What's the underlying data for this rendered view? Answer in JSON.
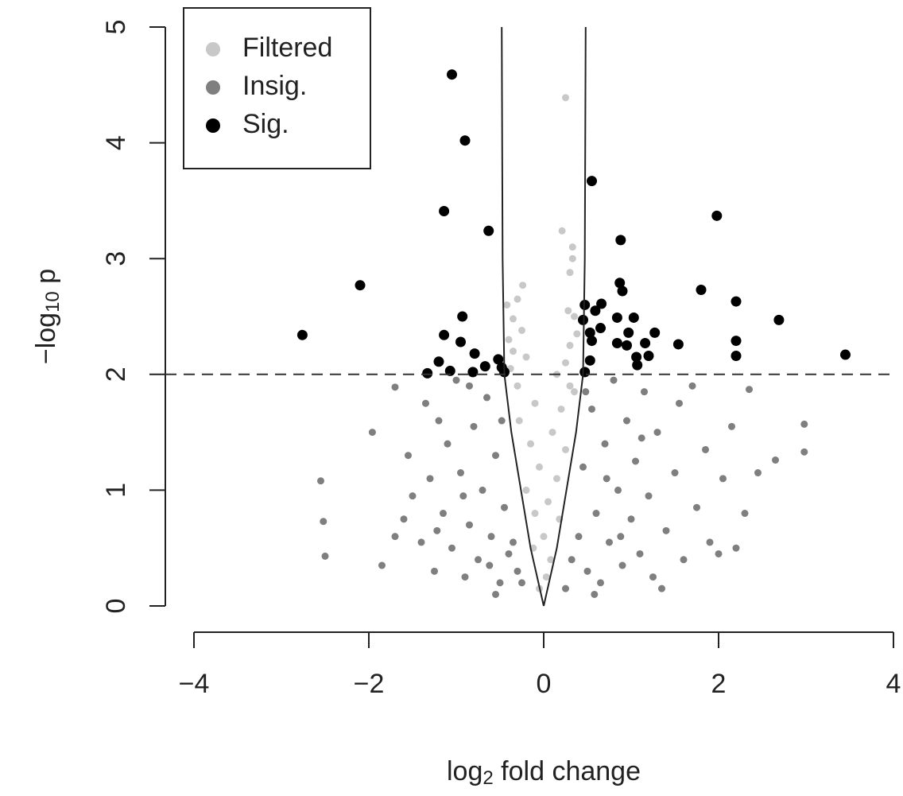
{
  "chart_data": {
    "type": "scatter",
    "xlabel_parts": [
      "log",
      "2",
      " fold change"
    ],
    "ylabel_parts": [
      "−log",
      "10",
      " p"
    ],
    "xlim": [
      -4,
      4
    ],
    "ylim": [
      0,
      5
    ],
    "xticks": [
      {
        "value": -4,
        "label": "−4"
      },
      {
        "value": -2,
        "label": "−2"
      },
      0,
      2,
      4
    ],
    "yticks": [
      0,
      1,
      2,
      3,
      4,
      5
    ],
    "hline": 2,
    "curves": [
      {
        "x": [
          0,
          -0.15,
          -0.26,
          -0.37,
          -0.45,
          -0.47,
          -0.475,
          -0.48
        ],
        "y": [
          0,
          0.5,
          1,
          1.5,
          2,
          3,
          4,
          5
        ]
      },
      {
        "x": [
          0,
          0.15,
          0.26,
          0.37,
          0.45,
          0.47,
          0.475,
          0.48
        ],
        "y": [
          0,
          0.5,
          1,
          1.5,
          2,
          3,
          4,
          5
        ]
      }
    ],
    "legend_position": "top-left",
    "series": [
      {
        "name": "Filtered",
        "color": "#c8c8c8",
        "x": [
          0.25,
          0.21,
          0.33,
          0.33,
          0.3,
          -0.24,
          -0.3,
          -0.42,
          0.28,
          0.35,
          -0.35,
          -0.25,
          -0.4,
          0.3,
          -0.2,
          0.25,
          -0.38,
          0.15,
          -0.3,
          0.35,
          -0.1,
          0.2,
          -0.28,
          0.1,
          -0.15,
          0.25,
          -0.05,
          0.15,
          -0.2,
          0.05,
          -0.1,
          0.18,
          0.0,
          -0.12,
          0.08,
          0.03,
          -0.05,
          0.3,
          -0.35,
          0.38
        ],
        "y": [
          4.39,
          3.24,
          3.1,
          3.0,
          2.88,
          2.77,
          2.65,
          2.6,
          2.55,
          2.5,
          2.48,
          2.38,
          2.3,
          2.25,
          2.15,
          2.1,
          2.05,
          2.0,
          1.9,
          1.85,
          1.75,
          1.7,
          1.6,
          1.5,
          1.4,
          1.35,
          1.2,
          1.1,
          1.0,
          0.9,
          0.8,
          0.75,
          0.6,
          0.5,
          0.4,
          0.25,
          0.15,
          1.9,
          2.2,
          2.35
        ]
      },
      {
        "name": "Insig.",
        "color": "#7f7f7f",
        "x": [
          -2.55,
          -2.52,
          -2.5,
          -1.96,
          -1.85,
          -1.7,
          -1.7,
          -1.55,
          -1.5,
          -1.4,
          -1.35,
          -1.3,
          -1.25,
          -1.2,
          -1.15,
          -1.1,
          -1.05,
          -1.0,
          -0.95,
          -0.9,
          -0.85,
          -0.8,
          -0.75,
          -0.7,
          -0.65,
          -0.6,
          -0.55,
          -0.5,
          -0.48,
          -0.45,
          -0.4,
          -0.35,
          -0.3,
          -0.25,
          -0.55,
          -0.85,
          -1.6,
          -0.92,
          -0.62,
          -1.22,
          0.25,
          0.32,
          0.4,
          0.45,
          0.5,
          0.55,
          0.6,
          0.65,
          0.7,
          0.75,
          0.8,
          0.85,
          0.9,
          0.95,
          1.0,
          1.05,
          1.1,
          1.15,
          1.2,
          1.25,
          1.3,
          1.4,
          1.5,
          1.55,
          1.6,
          1.7,
          1.75,
          1.85,
          1.9,
          2.0,
          2.05,
          2.15,
          2.2,
          2.3,
          2.35,
          2.45,
          2.65,
          2.98,
          2.98,
          0.58,
          0.72,
          1.35,
          0.48,
          1.12,
          0.88
        ],
        "y": [
          1.08,
          0.73,
          0.43,
          1.5,
          0.35,
          0.6,
          1.89,
          1.3,
          0.95,
          0.55,
          1.75,
          1.1,
          0.3,
          1.6,
          0.8,
          1.4,
          0.5,
          1.95,
          1.15,
          0.25,
          0.7,
          1.55,
          0.4,
          1.0,
          1.8,
          0.6,
          1.3,
          0.2,
          1.6,
          0.85,
          0.45,
          0.55,
          0.3,
          0.2,
          0.1,
          1.9,
          0.75,
          0.95,
          0.35,
          0.65,
          0.15,
          0.4,
          0.6,
          1.2,
          0.3,
          1.7,
          0.8,
          0.2,
          1.4,
          0.55,
          1.95,
          1.0,
          0.35,
          1.6,
          0.75,
          1.25,
          0.45,
          1.85,
          0.95,
          0.25,
          1.5,
          0.65,
          1.15,
          1.75,
          0.4,
          1.9,
          0.85,
          1.35,
          0.55,
          0.45,
          1.1,
          1.55,
          0.5,
          0.8,
          1.87,
          1.15,
          1.26,
          1.57,
          1.33,
          0.1,
          1.1,
          0.15,
          1.85,
          1.45,
          0.6
        ]
      },
      {
        "name": "Sig.",
        "color": "#000000",
        "x": [
          -1.05,
          -0.9,
          -1.14,
          -0.63,
          -2.1,
          -2.76,
          -0.93,
          -1.14,
          -0.95,
          -0.79,
          -1.2,
          -0.52,
          -0.48,
          -0.67,
          -1.33,
          -1.07,
          -0.81,
          -0.45,
          0.55,
          0.88,
          1.98,
          0.87,
          0.9,
          1.8,
          2.2,
          2.69,
          3.45,
          0.47,
          0.66,
          0.59,
          0.45,
          0.84,
          1.03,
          1.27,
          1.54,
          2.2,
          2.2,
          0.53,
          0.65,
          0.97,
          1.16,
          0.95,
          0.55,
          0.53,
          1.06,
          1.2,
          1.07,
          0.47,
          0.84
        ],
        "y": [
          4.59,
          4.02,
          3.41,
          3.24,
          2.77,
          2.34,
          2.5,
          2.34,
          2.28,
          2.18,
          2.11,
          2.13,
          2.06,
          2.07,
          2.01,
          2.03,
          2.02,
          2.02,
          3.67,
          3.16,
          3.37,
          2.79,
          2.72,
          2.73,
          2.63,
          2.47,
          2.17,
          2.6,
          2.61,
          2.55,
          2.47,
          2.49,
          2.49,
          2.36,
          2.26,
          2.29,
          2.16,
          2.36,
          2.4,
          2.36,
          2.27,
          2.25,
          2.29,
          2.12,
          2.15,
          2.16,
          2.08,
          2.02,
          2.27
        ]
      }
    ]
  }
}
